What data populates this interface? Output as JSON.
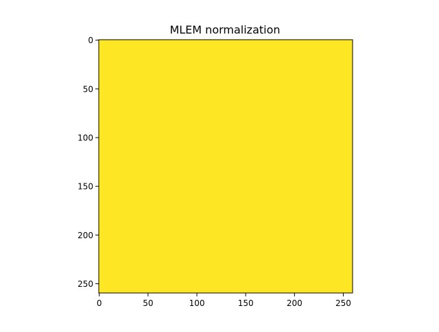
{
  "chart_data": {
    "type": "heatmap",
    "title": "MLEM normalization",
    "xlabel": "",
    "ylabel": "",
    "xlim": [
      -0.5,
      259.5
    ],
    "ylim": [
      259.5,
      -0.5
    ],
    "x_ticks": [
      0,
      50,
      100,
      150,
      200,
      250
    ],
    "y_ticks": [
      0,
      50,
      100,
      150,
      200,
      250
    ],
    "x_tick_labels": [
      "0",
      "50",
      "100",
      "150",
      "200",
      "250"
    ],
    "y_tick_labels": [
      "0",
      "50",
      "100",
      "150",
      "200",
      "250"
    ],
    "image_shape": [
      260,
      260
    ],
    "fill_color": "#fde725",
    "grid": false
  }
}
